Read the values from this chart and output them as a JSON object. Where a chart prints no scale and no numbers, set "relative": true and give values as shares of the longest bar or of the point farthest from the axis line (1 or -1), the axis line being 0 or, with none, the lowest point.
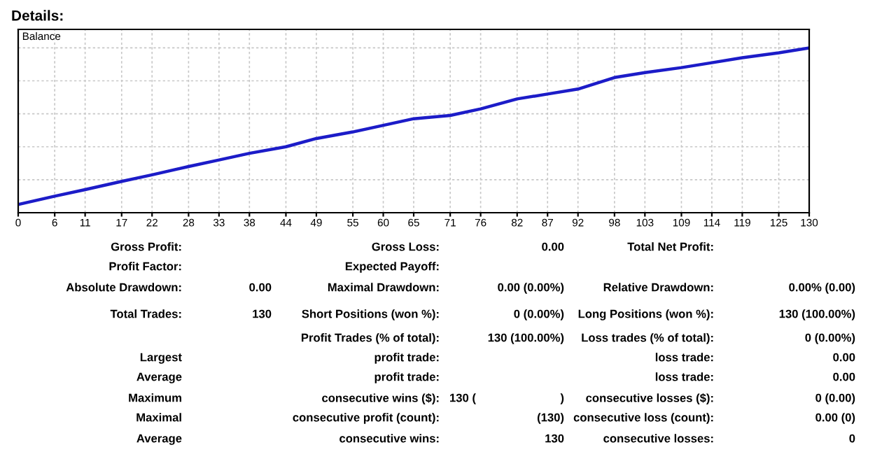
{
  "chart_data": {
    "type": "line",
    "title": "Details:",
    "relative": true,
    "grid": true,
    "legend": false,
    "tick_labels": "x",
    "marker": "none",
    "line_style": "solid",
    "x": [
      0,
      6,
      11,
      17,
      22,
      28,
      33,
      38,
      44,
      49,
      55,
      60,
      65,
      71,
      76,
      82,
      87,
      92,
      98,
      103,
      109,
      114,
      119,
      125,
      130
    ],
    "xlim": [
      0,
      130
    ],
    "xticks": [
      0,
      6,
      11,
      17,
      22,
      28,
      33,
      38,
      44,
      49,
      55,
      60,
      65,
      71,
      76,
      82,
      87,
      92,
      98,
      103,
      109,
      114,
      119,
      125,
      130
    ],
    "series": [
      {
        "name": "Balance",
        "color": "#1c1cc8",
        "values": [
          0.05,
          0.1,
          0.14,
          0.19,
          0.23,
          0.28,
          0.32,
          0.36,
          0.4,
          0.45,
          0.49,
          0.53,
          0.57,
          0.59,
          0.63,
          0.69,
          0.72,
          0.75,
          0.82,
          0.85,
          0.88,
          0.91,
          0.94,
          0.97,
          1.0
        ]
      }
    ],
    "annotations": [
      "Gross Profit:",
      "Gross Loss:",
      "0.00",
      "Total Net Profit:",
      "Profit Factor:",
      "Expected Payoff:",
      "Absolute Drawdown:",
      "0.00",
      "Maximal Drawdown:",
      "0.00 (0.00%)",
      "Relative Drawdown:",
      "0.00% (0.00)",
      "Total Trades:",
      "130",
      "Short Positions (won %):",
      "0 (0.00%)",
      "Long Positions (won %):",
      "130 (100.00%)",
      "Profit Trades (% of total):",
      "130 (100.00%)",
      "Loss trades (% of total):",
      "0 (0.00%)",
      "Largest",
      "profit trade:",
      "loss trade:",
      "0.00",
      "Average",
      "profit trade:",
      "loss trade:",
      "0.00",
      "Maximum",
      "consecutive wins ($):",
      "130 (",
      ")",
      "consecutive losses ($):",
      "0 (0.00)",
      "Maximal",
      "consecutive profit (count):",
      "(130)",
      "consecutive loss (count):",
      "0.00 (0)",
      "Average",
      "consecutive wins:",
      "130",
      "consecutive losses:",
      "0"
    ]
  }
}
